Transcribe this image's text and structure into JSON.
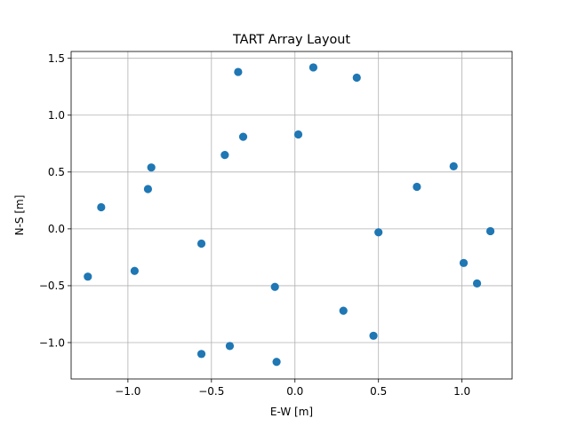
{
  "chart_data": {
    "type": "scatter",
    "title": "TART Array Layout",
    "xlabel": "E-W [m]",
    "ylabel": "N-S [m]",
    "xlim": [
      -1.34,
      1.3
    ],
    "ylim": [
      -1.32,
      1.56
    ],
    "xticks": [
      -1.0,
      -0.5,
      0.0,
      0.5,
      1.0
    ],
    "xtick_labels": [
      "−1.0",
      "−0.5",
      "0.0",
      "0.5",
      "1.0"
    ],
    "yticks": [
      -1.0,
      -0.5,
      0.0,
      0.5,
      1.0,
      1.5
    ],
    "ytick_labels": [
      "−1.0",
      "−0.5",
      "0.0",
      "0.5",
      "1.0",
      "1.5"
    ],
    "grid": true,
    "marker_color": "#1f77b4",
    "points": [
      {
        "x": -0.34,
        "y": 1.38
      },
      {
        "x": 0.11,
        "y": 1.42
      },
      {
        "x": 0.37,
        "y": 1.33
      },
      {
        "x": -0.31,
        "y": 0.81
      },
      {
        "x": 0.02,
        "y": 0.83
      },
      {
        "x": -0.42,
        "y": 0.65
      },
      {
        "x": -0.86,
        "y": 0.54
      },
      {
        "x": -0.88,
        "y": 0.35
      },
      {
        "x": -1.16,
        "y": 0.19
      },
      {
        "x": 0.95,
        "y": 0.55
      },
      {
        "x": 0.73,
        "y": 0.37
      },
      {
        "x": 0.5,
        "y": -0.03
      },
      {
        "x": 1.17,
        "y": -0.02
      },
      {
        "x": -0.56,
        "y": -0.13
      },
      {
        "x": -0.96,
        "y": -0.37
      },
      {
        "x": -1.24,
        "y": -0.42
      },
      {
        "x": 1.01,
        "y": -0.3
      },
      {
        "x": 1.09,
        "y": -0.48
      },
      {
        "x": -0.12,
        "y": -0.51
      },
      {
        "x": 0.29,
        "y": -0.72
      },
      {
        "x": 0.47,
        "y": -0.94
      },
      {
        "x": -0.39,
        "y": -1.03
      },
      {
        "x": -0.56,
        "y": -1.1
      },
      {
        "x": -0.11,
        "y": -1.17
      }
    ]
  }
}
